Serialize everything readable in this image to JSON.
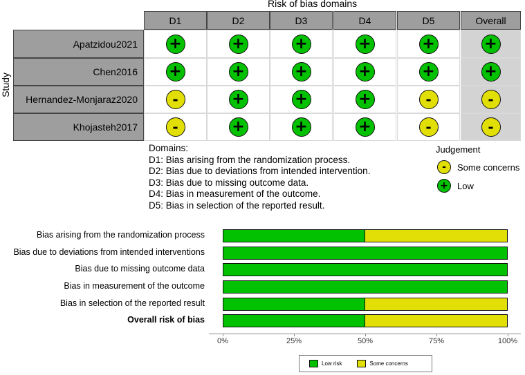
{
  "traffic_light": {
    "title": "Risk of bias domains",
    "y_axis_label": "Study",
    "columns": [
      "D1",
      "D2",
      "D3",
      "D4",
      "D5",
      "Overall"
    ],
    "rows": [
      {
        "study": "Apatzidou2021",
        "judgements": [
          "+",
          "+",
          "+",
          "+",
          "+",
          "+"
        ]
      },
      {
        "study": "Chen2016",
        "judgements": [
          "+",
          "+",
          "+",
          "+",
          "+",
          "+"
        ]
      },
      {
        "study": "Hernandez-Monjaraz2020",
        "judgements": [
          "-",
          "+",
          "+",
          "+",
          "-",
          "-"
        ]
      },
      {
        "study": "Khojasteh2017",
        "judgements": [
          "-",
          "+",
          "+",
          "+",
          "-",
          "-"
        ]
      }
    ],
    "colors": {
      "low": "#02c100",
      "some_concerns": "#e2df07",
      "header": "#9e9e9e",
      "overall_bg": "#d3d3d3"
    }
  },
  "domains_text": {
    "heading": "Domains:",
    "items": [
      "D1: Bias arising from the randomization process.",
      "D2: Bias due to deviations from intended intervention.",
      "D3: Bias due to missing outcome data.",
      "D4: Bias in measurement of the outcome.",
      "D5: Bias in selection of the reported result."
    ]
  },
  "judgement_legend": {
    "title": "Judgement",
    "items": [
      {
        "symbol": "-",
        "label": "Some concerns",
        "kind": "sc"
      },
      {
        "symbol": "+",
        "label": "Low",
        "kind": "low"
      }
    ]
  },
  "chart_data": {
    "type": "bar",
    "orientation": "horizontal",
    "stacked": true,
    "categories": [
      "Bias arising from the randomization process",
      "Bias due to deviations from intended interventions",
      "Bias due to missing outcome data",
      "Bias in measurement of the outcome",
      "Bias in selection of the reported result",
      "Overall risk of bias"
    ],
    "series": [
      {
        "name": "Low risk",
        "values": [
          50,
          100,
          100,
          100,
          50,
          50
        ],
        "color": "#02c100"
      },
      {
        "name": "Some concerns",
        "values": [
          50,
          0,
          0,
          0,
          50,
          50
        ],
        "color": "#e2df07"
      }
    ],
    "xlim": [
      0,
      100
    ],
    "x_ticks": [
      "0%",
      "25%",
      "50%",
      "75%",
      "100%"
    ],
    "legend_position": "bottom"
  }
}
